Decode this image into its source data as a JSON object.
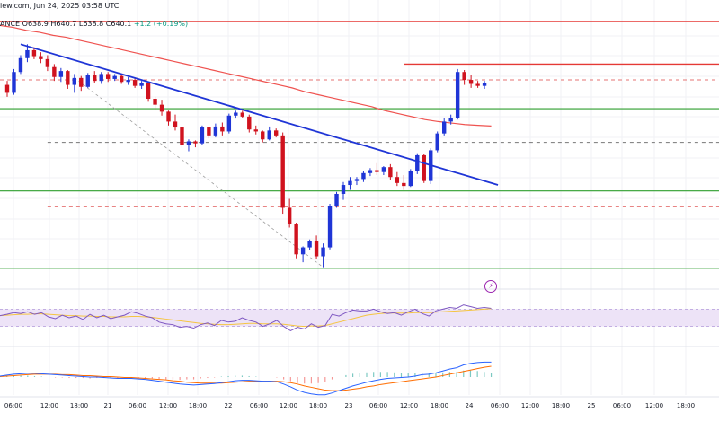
{
  "header": {
    "line1": "iew.com, Jun 24, 2025 03:58 UTC",
    "exchange": "ANCE",
    "open": "O638.9",
    "high": "H640.7",
    "low": "L638.8",
    "close": "C640.1",
    "change": "+1.2 (+0.19%)"
  },
  "colors": {
    "up": "#1f35d6",
    "down": "#d0121e",
    "trendline": "#1f35d6",
    "ma": "#ef5350",
    "resistance": "#e53935",
    "support": "#2e9e2e",
    "dashed_red": "#e57373",
    "dashed_gray": "#777777",
    "rsi_line": "#7e57c2",
    "rsi_ma": "#f5c542",
    "rsi_band": "#ede3f7",
    "macd_line": "#2962ff",
    "signal_line": "#ff6d00",
    "hist_pos": "#26a69a",
    "hist_neg": "#ef5350"
  },
  "icons": {
    "alert": "lightning-icon"
  },
  "alert_glyph": "⚡",
  "chart_data": {
    "type": "candlestick",
    "x_axis_labels": [
      "06:00",
      "12:00",
      "18:00",
      "21",
      "06:00",
      "12:00",
      "18:00",
      "22",
      "06:00",
      "12:00",
      "18:00",
      "23",
      "06:00",
      "12:00",
      "18:00",
      "24",
      "06:00",
      "12:00",
      "18:00",
      "25",
      "06:00",
      "12:00",
      "18:00"
    ],
    "candles": [
      [
        640.2,
        640.6,
        639.0,
        639.4
      ],
      [
        639.4,
        641.8,
        639.2,
        641.5
      ],
      [
        641.5,
        643.2,
        641.3,
        642.9
      ],
      [
        642.9,
        644.3,
        642.5,
        643.7
      ],
      [
        643.7,
        644.0,
        642.8,
        643.1
      ],
      [
        643.1,
        643.5,
        642.4,
        642.8
      ],
      [
        642.8,
        643.2,
        641.6,
        642.0
      ],
      [
        642.0,
        642.3,
        640.6,
        641.0
      ],
      [
        641.0,
        641.9,
        640.5,
        641.6
      ],
      [
        641.6,
        641.7,
        639.8,
        640.2
      ],
      [
        640.2,
        641.3,
        639.4,
        640.9
      ],
      [
        640.9,
        641.1,
        639.6,
        640.0
      ],
      [
        640.0,
        641.4,
        639.9,
        641.2
      ],
      [
        641.2,
        641.6,
        640.4,
        640.6
      ],
      [
        640.6,
        641.5,
        640.3,
        641.3
      ],
      [
        641.3,
        641.5,
        640.5,
        640.8
      ],
      [
        640.8,
        641.3,
        640.6,
        641.1
      ],
      [
        641.1,
        641.2,
        640.3,
        640.5
      ],
      [
        640.5,
        641.0,
        640.2,
        640.7
      ],
      [
        640.7,
        640.9,
        639.9,
        640.1
      ],
      [
        640.1,
        640.6,
        639.8,
        640.4
      ],
      [
        640.4,
        640.5,
        638.5,
        638.8
      ],
      [
        638.8,
        639.0,
        637.7,
        638.2
      ],
      [
        638.2,
        638.7,
        637.1,
        637.5
      ],
      [
        637.5,
        637.6,
        636.1,
        636.5
      ],
      [
        636.5,
        637.2,
        635.6,
        635.9
      ],
      [
        635.9,
        636.0,
        633.8,
        634.1
      ],
      [
        634.1,
        634.7,
        633.5,
        634.5
      ],
      [
        634.5,
        634.6,
        633.9,
        634.3
      ],
      [
        634.3,
        636.1,
        634.1,
        635.9
      ],
      [
        635.9,
        636.0,
        634.8,
        635.1
      ],
      [
        635.1,
        636.3,
        634.9,
        636.0
      ],
      [
        636.0,
        636.4,
        635.1,
        635.5
      ],
      [
        635.5,
        637.3,
        635.3,
        637.1
      ],
      [
        637.1,
        637.6,
        636.8,
        637.4
      ],
      [
        637.4,
        637.6,
        636.9,
        637.0
      ],
      [
        637.0,
        637.2,
        635.4,
        635.7
      ],
      [
        635.7,
        636.1,
        635.2,
        635.5
      ],
      [
        635.5,
        635.6,
        634.4,
        634.7
      ],
      [
        634.7,
        636.0,
        634.6,
        635.6
      ],
      [
        635.6,
        635.8,
        634.9,
        635.1
      ],
      [
        635.1,
        635.4,
        627.2,
        627.8
      ],
      [
        627.8,
        628.7,
        625.8,
        626.2
      ],
      [
        626.2,
        626.3,
        622.7,
        623.1
      ],
      [
        623.1,
        623.9,
        622.3,
        623.8
      ],
      [
        623.8,
        624.6,
        623.5,
        624.4
      ],
      [
        624.4,
        625.0,
        622.6,
        622.9
      ],
      [
        622.9,
        624.2,
        621.8,
        623.8
      ],
      [
        623.8,
        628.2,
        623.6,
        628.0
      ],
      [
        628.0,
        629.4,
        627.8,
        629.2
      ],
      [
        629.2,
        630.4,
        628.6,
        630.1
      ],
      [
        630.1,
        630.9,
        629.6,
        630.5
      ],
      [
        630.5,
        630.9,
        630.1,
        630.7
      ],
      [
        630.7,
        631.5,
        630.4,
        631.3
      ],
      [
        631.3,
        631.8,
        631.0,
        631.6
      ],
      [
        631.6,
        632.3,
        631.1,
        631.4
      ],
      [
        631.4,
        632.0,
        631.1,
        631.9
      ],
      [
        631.9,
        632.2,
        630.6,
        630.9
      ],
      [
        630.9,
        631.4,
        630.0,
        630.3
      ],
      [
        630.3,
        631.1,
        629.6,
        630.0
      ],
      [
        630.0,
        631.7,
        629.9,
        631.5
      ],
      [
        631.5,
        633.3,
        631.2,
        633.1
      ],
      [
        633.1,
        633.2,
        630.3,
        630.5
      ],
      [
        630.5,
        633.8,
        630.2,
        633.6
      ],
      [
        633.6,
        635.5,
        633.4,
        635.3
      ],
      [
        635.3,
        636.9,
        635.1,
        636.5
      ],
      [
        636.5,
        637.2,
        636.2,
        636.9
      ],
      [
        636.9,
        641.8,
        636.7,
        641.5
      ],
      [
        641.5,
        641.7,
        640.2,
        640.7
      ],
      [
        640.7,
        641.2,
        639.9,
        640.3
      ],
      [
        640.3,
        640.6,
        639.9,
        640.1
      ],
      [
        640.1,
        640.6,
        639.8,
        640.4
      ]
    ],
    "ma_line": [
      646.2,
      646.0,
      645.7,
      645.5,
      645.2,
      645.0,
      644.7,
      644.4,
      644.1,
      643.8,
      643.5,
      643.2,
      642.9,
      642.6,
      642.3,
      642.0,
      641.7,
      641.4,
      641.1,
      640.8,
      640.5,
      640.2,
      639.9,
      639.5,
      639.2,
      638.9,
      638.6,
      638.3,
      638.0,
      637.6,
      637.3,
      637.0,
      636.7,
      636.5,
      636.35,
      636.2,
      636.12,
      636.05
    ],
    "trendline": {
      "from": [
        2,
        644.3
      ],
      "to": [
        73,
        630.1
      ]
    },
    "levels": {
      "resistance_top": 646.6,
      "resistance_short": 642.3,
      "dashed_red_1": 640.7,
      "support_1": 637.8,
      "dashed_gray": 634.4,
      "support_2": 629.5,
      "dashed_red_2": 627.9,
      "support_3": 621.7
    },
    "rsi": {
      "upper_band": 70,
      "lower_band": 30,
      "values": [
        55,
        58,
        62,
        60,
        64,
        58,
        62,
        52,
        48,
        56,
        50,
        54,
        46,
        58,
        50,
        56,
        48,
        52,
        56,
        64,
        60,
        54,
        50,
        40,
        36,
        34,
        28,
        30,
        26,
        34,
        38,
        32,
        44,
        40,
        42,
        50,
        44,
        40,
        30,
        36,
        44,
        30,
        20,
        28,
        24,
        36,
        28,
        32,
        58,
        54,
        62,
        68,
        66,
        66,
        70,
        64,
        60,
        62,
        56,
        64,
        70,
        60,
        54,
        66,
        70,
        74,
        72,
        80,
        76,
        72,
        74,
        72
      ],
      "ma_values": [
        55,
        56,
        57,
        58,
        58,
        59,
        59,
        58,
        57,
        56,
        55,
        55,
        54,
        54,
        53,
        53,
        52,
        52,
        52,
        53,
        53,
        52,
        51,
        49,
        47,
        45,
        43,
        41,
        39,
        37,
        36,
        35,
        34,
        34,
        35,
        36,
        37,
        37,
        36,
        36,
        36,
        35,
        33,
        31,
        30,
        31,
        31,
        32,
        36,
        40,
        44,
        48,
        52,
        56,
        58,
        60,
        61,
        61,
        61,
        61,
        62,
        62,
        62,
        63,
        64,
        65,
        66,
        67,
        68,
        69,
        70,
        71
      ]
    },
    "macd": {
      "macd_values": [
        0.2,
        0.4,
        0.6,
        0.7,
        0.8,
        0.8,
        0.7,
        0.6,
        0.5,
        0.4,
        0.3,
        0.2,
        0.1,
        0.0,
        0.0,
        -0.1,
        -0.2,
        -0.3,
        -0.3,
        -0.3,
        -0.4,
        -0.5,
        -0.7,
        -0.9,
        -1.1,
        -1.3,
        -1.5,
        -1.6,
        -1.7,
        -1.6,
        -1.5,
        -1.4,
        -1.2,
        -1.0,
        -0.8,
        -0.7,
        -0.7,
        -0.8,
        -0.9,
        -0.9,
        -1.0,
        -1.5,
        -2.1,
        -2.8,
        -3.3,
        -3.6,
        -3.8,
        -3.8,
        -3.4,
        -2.9,
        -2.4,
        -1.9,
        -1.5,
        -1.1,
        -0.8,
        -0.5,
        -0.3,
        -0.2,
        -0.1,
        0.0,
        0.2,
        0.5,
        0.6,
        0.9,
        1.3,
        1.7,
        2.0,
        2.6,
        2.9,
        3.1,
        3.2,
        3.2
      ],
      "signal_values": [
        0.1,
        0.2,
        0.3,
        0.4,
        0.5,
        0.6,
        0.6,
        0.6,
        0.6,
        0.5,
        0.5,
        0.4,
        0.3,
        0.3,
        0.2,
        0.1,
        0.1,
        0.0,
        -0.1,
        -0.1,
        -0.2,
        -0.3,
        -0.4,
        -0.5,
        -0.6,
        -0.8,
        -0.9,
        -1.1,
        -1.2,
        -1.3,
        -1.3,
        -1.3,
        -1.3,
        -1.2,
        -1.1,
        -1.0,
        -0.9,
        -0.9,
        -0.9,
        -0.9,
        -0.9,
        -1.0,
        -1.2,
        -1.5,
        -1.9,
        -2.2,
        -2.5,
        -2.8,
        -2.9,
        -2.9,
        -2.8,
        -2.6,
        -2.4,
        -2.1,
        -1.9,
        -1.6,
        -1.4,
        -1.2,
        -1.0,
        -0.8,
        -0.6,
        -0.4,
        -0.2,
        0.0,
        0.3,
        0.6,
        0.9,
        1.2,
        1.5,
        1.8,
        2.1,
        2.3
      ]
    }
  }
}
